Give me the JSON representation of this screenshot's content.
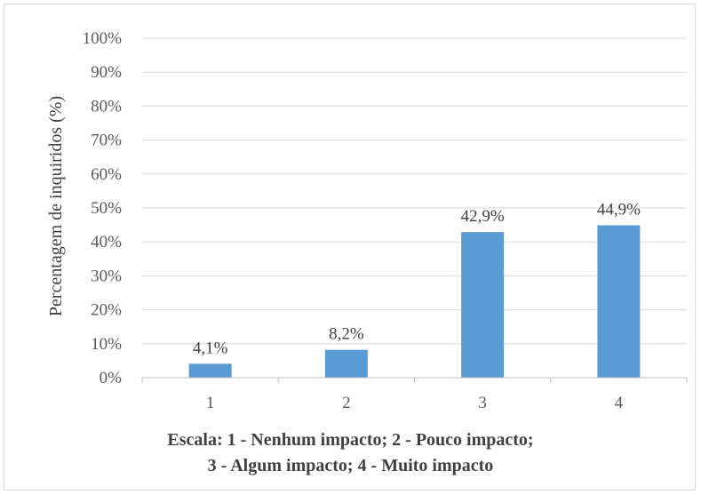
{
  "chart_data": {
    "type": "bar",
    "categories": [
      "1",
      "2",
      "3",
      "4"
    ],
    "values": [
      4.1,
      8.2,
      42.9,
      44.9
    ],
    "value_labels": [
      "4,1%",
      "8,2%",
      "42,9%",
      "44,9%"
    ],
    "ylabel": "Percentagem de inquiridos (%)",
    "xlabel_lines": [
      "Escala: 1 - Nenhum impacto; 2 - Pouco impacto;",
      "3 - Algum impacto; 4 - Muito impacto"
    ],
    "ylim": [
      0,
      100
    ],
    "yticks": [
      "0%",
      "10%",
      "20%",
      "30%",
      "40%",
      "50%",
      "60%",
      "70%",
      "80%",
      "90%",
      "100%"
    ],
    "grid": true,
    "bar_color": "#5b9bd5",
    "grid_color": "#d9d9d9"
  }
}
